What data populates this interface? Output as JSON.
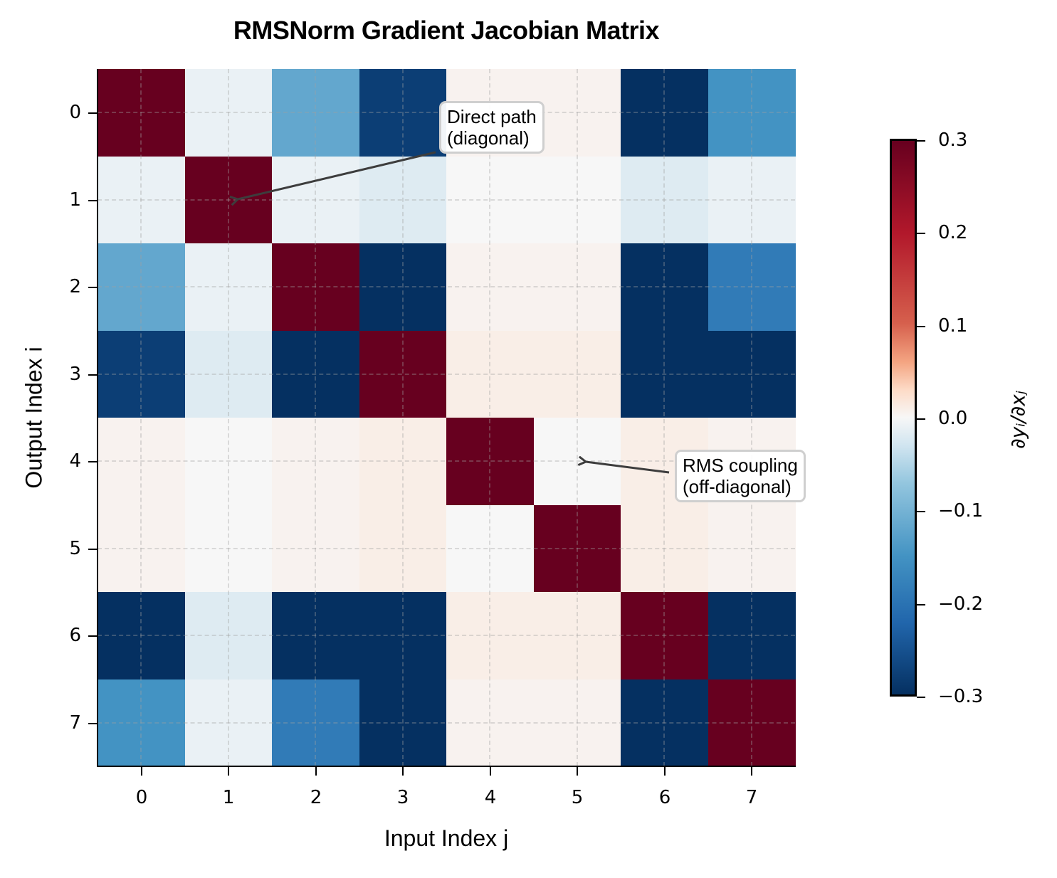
{
  "chart": {
    "title": "RMSNorm Gradient Jacobian Matrix",
    "xlabel": "Input Index j",
    "ylabel": "Output Index i",
    "xticks": [
      "0",
      "1",
      "2",
      "3",
      "4",
      "5",
      "6",
      "7"
    ],
    "yticks": [
      "0",
      "1",
      "2",
      "3",
      "4",
      "5",
      "6",
      "7"
    ],
    "colorbar": {
      "label": "∂y_i/∂x_j",
      "label_display": "∂yᵢ/∂xⱼ",
      "ticks": [
        "0.3",
        "0.2",
        "0.1",
        "0.0",
        "−0.1",
        "−0.2",
        "−0.3"
      ],
      "colormap": "RdBu_r",
      "vmin": -0.3,
      "vmax": 0.3
    },
    "annotations": [
      {
        "text_line1": "Direct path",
        "text_line2": "(diagonal)",
        "target": [
          1,
          1
        ]
      },
      {
        "text_line1": "RMS coupling",
        "text_line2": "(off-diagonal)",
        "target": [
          4,
          5
        ]
      }
    ]
  },
  "chart_data": {
    "type": "heatmap",
    "title": "RMSNorm Gradient Jacobian Matrix",
    "xlabel": "Input Index j",
    "ylabel": "Output Index i",
    "x": [
      0,
      1,
      2,
      3,
      4,
      5,
      6,
      7
    ],
    "y": [
      0,
      1,
      2,
      3,
      4,
      5,
      6,
      7
    ],
    "colorbar_label": "∂y_i/∂x_j",
    "vmin": -0.3,
    "vmax": 0.3,
    "grid": true,
    "values": [
      [
        0.45,
        -0.01,
        -0.12,
        -0.28,
        0.005,
        0.005,
        -0.3,
        -0.15
      ],
      [
        -0.01,
        0.45,
        -0.01,
        -0.02,
        0.0,
        0.0,
        -0.02,
        -0.01
      ],
      [
        -0.12,
        -0.01,
        0.45,
        -0.3,
        0.005,
        0.005,
        -0.3,
        -0.19
      ],
      [
        -0.28,
        -0.02,
        -0.3,
        0.45,
        0.01,
        0.01,
        -0.3,
        -0.3
      ],
      [
        0.005,
        0.0,
        0.005,
        0.01,
        0.45,
        0.0,
        0.01,
        0.005
      ],
      [
        0.005,
        0.0,
        0.005,
        0.01,
        0.0,
        0.45,
        0.01,
        0.005
      ],
      [
        -0.3,
        -0.02,
        -0.3,
        -0.3,
        0.01,
        0.01,
        0.45,
        -0.3
      ],
      [
        -0.15,
        -0.01,
        -0.19,
        -0.3,
        0.005,
        0.005,
        -0.3,
        0.45
      ]
    ],
    "annotations": [
      {
        "text": "Direct path\n(diagonal)",
        "xy": [
          1,
          1
        ]
      },
      {
        "text": "RMS coupling\n(off-diagonal)",
        "xy": [
          5,
          4
        ]
      }
    ]
  }
}
